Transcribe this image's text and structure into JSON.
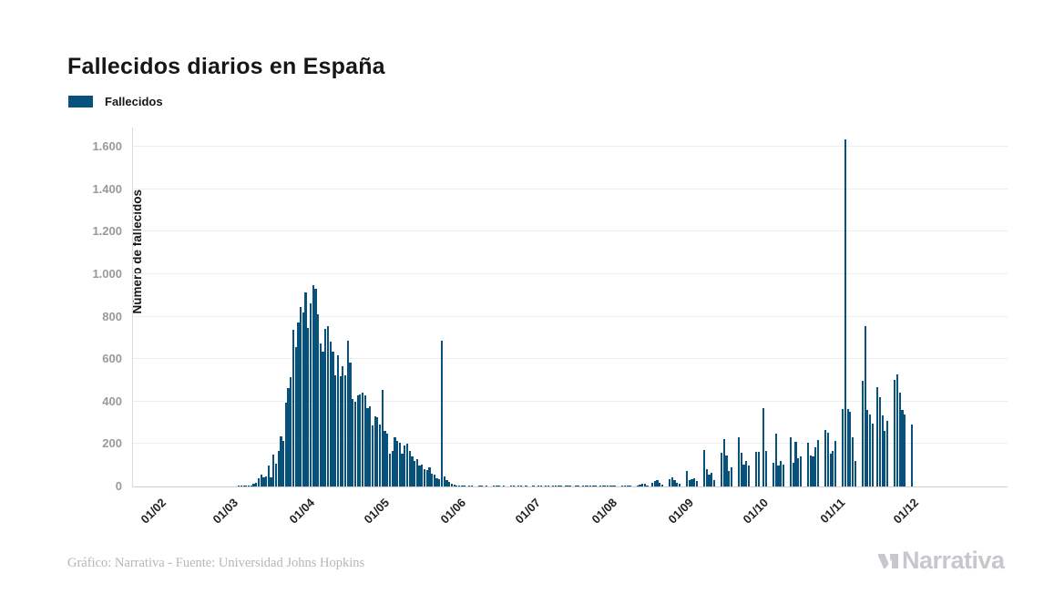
{
  "title": "Fallecidos diarios en España",
  "legend": {
    "label": "Fallecidos",
    "color": "#08517A"
  },
  "footer": {
    "credit": "Gráfico: Narrativa - Fuente: Universidad Johns Hopkins"
  },
  "brand": {
    "name": "Narrativa"
  },
  "colors": {
    "bar": "#08517A",
    "grid": "#ededf0",
    "tick_text": "#98989d",
    "title_text": "#161616",
    "credit_text": "#b6b6bb",
    "brand_text": "#c8c8cc"
  },
  "chart_data": {
    "type": "bar",
    "title": "Fallecidos diarios en España",
    "series_name": "Fallecidos",
    "xlabel": "",
    "ylabel": "Número de fallecidos",
    "ylim": [
      0,
      1700
    ],
    "grid": "horizontal",
    "legend_position": "top-left",
    "y_ticks": [
      0,
      200,
      400,
      600,
      800,
      1000,
      1200,
      1400,
      1600
    ],
    "y_tick_labels": [
      "0",
      "200",
      "400",
      "600",
      "800",
      "1.000",
      "1.200",
      "1.400",
      "1.600"
    ],
    "x_ticks": [
      {
        "label": "01/02",
        "day": 0
      },
      {
        "label": "01/03",
        "day": 29
      },
      {
        "label": "01/04",
        "day": 60
      },
      {
        "label": "01/05",
        "day": 90
      },
      {
        "label": "01/06",
        "day": 121
      },
      {
        "label": "01/07",
        "day": 151
      },
      {
        "label": "01/08",
        "day": 182
      },
      {
        "label": "01/09",
        "day": 213
      },
      {
        "label": "01/10",
        "day": 243
      },
      {
        "label": "01/11",
        "day": 274
      },
      {
        "label": "01/12",
        "day": 304
      }
    ],
    "x_start_label": "01/02",
    "values": [
      0,
      0,
      0,
      0,
      0,
      0,
      0,
      0,
      0,
      0,
      0,
      0,
      0,
      0,
      0,
      0,
      0,
      0,
      0,
      0,
      0,
      0,
      0,
      0,
      0,
      0,
      0,
      0,
      0,
      0,
      0,
      1,
      2,
      1,
      2,
      3,
      6,
      12,
      19,
      37,
      55,
      42,
      47,
      97,
      43,
      150,
      107,
      169,
      235,
      216,
      394,
      462,
      514,
      738,
      655,
      773,
      844,
      821,
      913,
      748,
      864,
      950,
      932,
      809,
      674,
      637,
      743,
      757,
      683,
      634,
      525,
      619,
      517,
      567,
      523,
      687,
      585,
      410,
      399,
      430,
      435,
      440,
      428,
      367,
      378,
      288,
      331,
      326,
      290,
      455,
      261,
      251,
      154,
      169,
      233,
      214,
      204,
      154,
      193,
      200,
      169,
      140,
      119,
      130,
      97,
      104,
      83,
      76,
      90,
      61,
      54,
      40,
      33,
      688,
      47,
      29,
      20,
      12,
      8,
      4,
      2,
      3,
      1,
      0,
      2,
      1,
      0,
      0,
      1,
      2,
      0,
      1,
      0,
      0,
      2,
      1,
      3,
      0,
      1,
      0,
      0,
      2,
      1,
      0,
      1,
      2,
      0,
      1,
      0,
      0,
      1,
      0,
      2,
      1,
      0,
      3,
      2,
      0,
      1,
      2,
      4,
      2,
      0,
      3,
      2,
      4,
      0,
      2,
      3,
      0,
      2,
      5,
      3,
      2,
      4,
      3,
      0,
      2,
      4,
      3,
      2,
      5,
      2,
      1,
      0,
      0,
      3,
      2,
      4,
      3,
      0,
      0,
      5,
      10,
      13,
      11,
      6,
      0,
      16,
      26,
      29,
      16,
      8,
      0,
      0,
      36,
      44,
      30,
      19,
      12,
      0,
      0,
      71,
      30,
      36,
      40,
      24,
      0,
      0,
      171,
      83,
      57,
      64,
      30,
      0,
      0,
      159,
      221,
      147,
      73,
      90,
      0,
      0,
      230,
      159,
      104,
      119,
      97,
      0,
      0,
      161,
      164,
      0,
      369,
      167,
      0,
      0,
      110,
      247,
      97,
      119,
      104,
      0,
      0,
      230,
      111,
      209,
      131,
      140,
      0,
      0,
      204,
      147,
      140,
      183,
      219,
      0,
      0,
      264,
      254,
      154,
      169,
      214,
      0,
      0,
      364,
      1635,
      364,
      350,
      230,
      119,
      0,
      0,
      497,
      754,
      361,
      340,
      297,
      0,
      469,
      419,
      333,
      261,
      311,
      0,
      0,
      504,
      526,
      440,
      361,
      340,
      0,
      0,
      290,
      0
    ]
  }
}
